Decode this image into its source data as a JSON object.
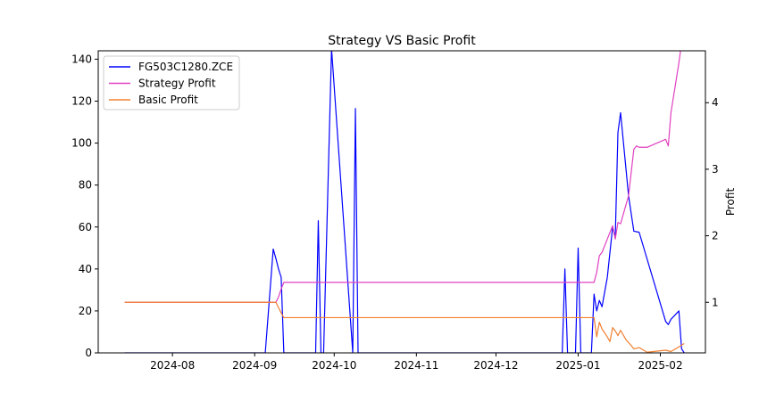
{
  "chart_data": {
    "type": "line",
    "title": "Strategy VS Basic Profit",
    "xlabel": "",
    "ylabel_left": "",
    "ylabel_right": "Profit",
    "legend_placement": "top-left",
    "grid": false,
    "x_ticks": [
      "2024-08",
      "2024-09",
      "2024-10",
      "2024-11",
      "2024-12",
      "2025-01",
      "2025-02"
    ],
    "x_tick_dates": [
      "2024-08-01",
      "2024-09-01",
      "2024-10-01",
      "2024-11-01",
      "2024-12-01",
      "2025-01-01",
      "2025-02-01"
    ],
    "xlim": [
      "2024-07-04",
      "2025-02-18"
    ],
    "ylim_left": [
      0,
      144
    ],
    "ylim_right": [
      0.24,
      4.78
    ],
    "y_ticks_left": [
      "0",
      "20",
      "40",
      "60",
      "80",
      "100",
      "120",
      "140"
    ],
    "y_ticks_right": [
      "1",
      "2",
      "3",
      "4"
    ],
    "series": [
      {
        "name": "FG503C1280.ZCE",
        "axis": "left",
        "color": "#0000ff",
        "points": [
          [
            "2024-07-14",
            0
          ],
          [
            "2024-09-05",
            0
          ],
          [
            "2024-09-08",
            49.5
          ],
          [
            "2024-09-09",
            45
          ],
          [
            "2024-09-10",
            40
          ],
          [
            "2024-09-11",
            36
          ],
          [
            "2024-09-12",
            0
          ],
          [
            "2024-09-24",
            0
          ],
          [
            "2024-09-25",
            63
          ],
          [
            "2024-09-26",
            0
          ],
          [
            "2024-09-27",
            0
          ],
          [
            "2024-09-30",
            145
          ],
          [
            "2024-10-08",
            0
          ],
          [
            "2024-10-09",
            116.5
          ],
          [
            "2024-10-10",
            0
          ],
          [
            "2024-12-26",
            0
          ],
          [
            "2024-12-27",
            40
          ],
          [
            "2024-12-28",
            0
          ],
          [
            "2024-12-31",
            0
          ],
          [
            "2025-01-01",
            50
          ],
          [
            "2025-01-02",
            0
          ],
          [
            "2025-01-06",
            0
          ],
          [
            "2025-01-07",
            28
          ],
          [
            "2025-01-08",
            20
          ],
          [
            "2025-01-09",
            25
          ],
          [
            "2025-01-10",
            22
          ],
          [
            "2025-01-12",
            36
          ],
          [
            "2025-01-14",
            60
          ],
          [
            "2025-01-15",
            55
          ],
          [
            "2025-01-16",
            105
          ],
          [
            "2025-01-17",
            114.5
          ],
          [
            "2025-01-20",
            75
          ],
          [
            "2025-01-22",
            58
          ],
          [
            "2025-01-24",
            57.5
          ],
          [
            "2025-02-03",
            15
          ],
          [
            "2025-02-04",
            13.5
          ],
          [
            "2025-02-05",
            16
          ],
          [
            "2025-02-08",
            20
          ],
          [
            "2025-02-09",
            2
          ],
          [
            "2025-02-10",
            0
          ]
        ]
      },
      {
        "name": "Strategy Profit",
        "axis": "right",
        "color": "#e040c0",
        "points": [
          [
            "2024-07-14",
            1.0
          ],
          [
            "2024-09-09",
            1.0
          ],
          [
            "2024-09-10",
            1.08
          ],
          [
            "2024-09-11",
            1.2
          ],
          [
            "2024-09-12",
            1.3
          ],
          [
            "2025-01-07",
            1.3
          ],
          [
            "2025-01-08",
            1.45
          ],
          [
            "2025-01-09",
            1.7
          ],
          [
            "2025-01-10",
            1.75
          ],
          [
            "2025-01-12",
            1.95
          ],
          [
            "2025-01-14",
            2.15
          ],
          [
            "2025-01-15",
            1.95
          ],
          [
            "2025-01-16",
            2.2
          ],
          [
            "2025-01-17",
            2.18
          ],
          [
            "2025-01-20",
            2.6
          ],
          [
            "2025-01-22",
            3.3
          ],
          [
            "2025-01-23",
            3.35
          ],
          [
            "2025-01-24",
            3.33
          ],
          [
            "2025-01-27",
            3.33
          ],
          [
            "2025-02-03",
            3.45
          ],
          [
            "2025-02-04",
            3.35
          ],
          [
            "2025-02-05",
            3.85
          ],
          [
            "2025-02-08",
            4.6
          ],
          [
            "2025-02-09",
            4.9
          ]
        ]
      },
      {
        "name": "Basic Profit",
        "axis": "right",
        "color": "#f08030",
        "points": [
          [
            "2024-07-14",
            1.0
          ],
          [
            "2024-09-09",
            1.0
          ],
          [
            "2024-09-10",
            0.92
          ],
          [
            "2024-09-11",
            0.84
          ],
          [
            "2024-09-12",
            0.77
          ],
          [
            "2025-01-07",
            0.77
          ],
          [
            "2025-01-08",
            0.48
          ],
          [
            "2025-01-09",
            0.7
          ],
          [
            "2025-01-10",
            0.6
          ],
          [
            "2025-01-12",
            0.48
          ],
          [
            "2025-01-13",
            0.41
          ],
          [
            "2025-01-14",
            0.62
          ],
          [
            "2025-01-15",
            0.57
          ],
          [
            "2025-01-16",
            0.5
          ],
          [
            "2025-01-17",
            0.58
          ],
          [
            "2025-01-19",
            0.44
          ],
          [
            "2025-01-21",
            0.35
          ],
          [
            "2025-01-22",
            0.3
          ],
          [
            "2025-01-24",
            0.32
          ],
          [
            "2025-01-27",
            0.25
          ],
          [
            "2025-02-03",
            0.28
          ],
          [
            "2025-02-05",
            0.26
          ],
          [
            "2025-02-08",
            0.33
          ],
          [
            "2025-02-10",
            0.38
          ]
        ]
      }
    ]
  }
}
